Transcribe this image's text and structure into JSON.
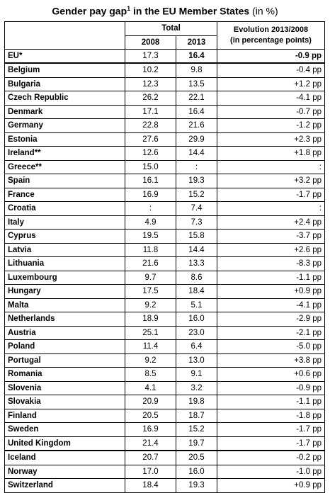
{
  "title": {
    "main": "Gender pay gap",
    "footnote": "1",
    "rest": " in the EU Member States",
    "unit": " (in %)"
  },
  "header": {
    "total_label": "Total",
    "year_2008": "2008",
    "year_2013": "2013",
    "evolution_line1": "Evolution 2013/2008",
    "evolution_line2": "(in percentage points)"
  },
  "rows": [
    {
      "country": "EU*",
      "v2008": "17.3",
      "v2013": "16.4",
      "evol": "-0.9 pp"
    },
    {
      "country": "Belgium",
      "v2008": "10.2",
      "v2013": "9.8",
      "evol": "-0.4 pp"
    },
    {
      "country": "Bulgaria",
      "v2008": "12.3",
      "v2013": "13.5",
      "evol": "+1.2 pp"
    },
    {
      "country": "Czech Republic",
      "v2008": "26.2",
      "v2013": "22.1",
      "evol": "-4.1 pp"
    },
    {
      "country": "Denmark",
      "v2008": "17.1",
      "v2013": "16.4",
      "evol": "-0.7 pp"
    },
    {
      "country": "Germany",
      "v2008": "22.8",
      "v2013": "21.6",
      "evol": "-1.2 pp"
    },
    {
      "country": "Estonia",
      "v2008": "27.6",
      "v2013": "29.9",
      "evol": "+2.3 pp"
    },
    {
      "country": "Ireland**",
      "v2008": "12.6",
      "v2013": "14.4",
      "evol": "+1.8 pp"
    },
    {
      "country": "Greece**",
      "v2008": "15.0",
      "v2013": ":",
      "evol": ":"
    },
    {
      "country": "Spain",
      "v2008": "16.1",
      "v2013": "19.3",
      "evol": "+3.2 pp"
    },
    {
      "country": "France",
      "v2008": "16.9",
      "v2013": "15.2",
      "evol": "-1.7 pp"
    },
    {
      "country": "Croatia",
      "v2008": ":",
      "v2013": "7.4",
      "evol": ":"
    },
    {
      "country": "Italy",
      "v2008": "4.9",
      "v2013": "7.3",
      "evol": "+2.4 pp"
    },
    {
      "country": "Cyprus",
      "v2008": "19.5",
      "v2013": "15.8",
      "evol": "-3.7 pp"
    },
    {
      "country": "Latvia",
      "v2008": "11.8",
      "v2013": "14.4",
      "evol": "+2.6 pp"
    },
    {
      "country": "Lithuania",
      "v2008": "21.6",
      "v2013": "13.3",
      "evol": "-8.3 pp"
    },
    {
      "country": "Luxembourg",
      "v2008": "9.7",
      "v2013": "8.6",
      "evol": "-1.1 pp"
    },
    {
      "country": "Hungary",
      "v2008": "17.5",
      "v2013": "18.4",
      "evol": "+0.9 pp"
    },
    {
      "country": "Malta",
      "v2008": "9.2",
      "v2013": "5.1",
      "evol": "-4.1 pp"
    },
    {
      "country": "Netherlands",
      "v2008": "18.9",
      "v2013": "16.0",
      "evol": "-2.9 pp"
    },
    {
      "country": "Austria",
      "v2008": "25.1",
      "v2013": "23.0",
      "evol": "-2.1 pp"
    },
    {
      "country": "Poland",
      "v2008": "11.4",
      "v2013": "6.4",
      "evol": "-5.0 pp"
    },
    {
      "country": "Portugal",
      "v2008": "9.2",
      "v2013": "13.0",
      "evol": "+3.8 pp"
    },
    {
      "country": "Romania",
      "v2008": "8.5",
      "v2013": "9.1",
      "evol": "+0.6 pp"
    },
    {
      "country": "Slovenia",
      "v2008": "4.1",
      "v2013": "3.2",
      "evol": "-0.9 pp"
    },
    {
      "country": "Slovakia",
      "v2008": "20.9",
      "v2013": "19.8",
      "evol": "-1.1 pp"
    },
    {
      "country": "Finland",
      "v2008": "20.5",
      "v2013": "18.7",
      "evol": "-1.8 pp"
    },
    {
      "country": "Sweden",
      "v2008": "16.9",
      "v2013": "15.2",
      "evol": "-1.7 pp"
    },
    {
      "country": "United Kingdom",
      "v2008": "21.4",
      "v2013": "19.7",
      "evol": "-1.7 pp"
    },
    {
      "country": "Iceland",
      "v2008": "20.7",
      "v2013": "20.5",
      "evol": "-0.2 pp"
    },
    {
      "country": "Norway",
      "v2008": "17.0",
      "v2013": "16.0",
      "evol": "-1.0 pp"
    },
    {
      "country": "Switzerland",
      "v2008": "18.4",
      "v2013": "19.3",
      "evol": "+0.9 pp"
    }
  ]
}
